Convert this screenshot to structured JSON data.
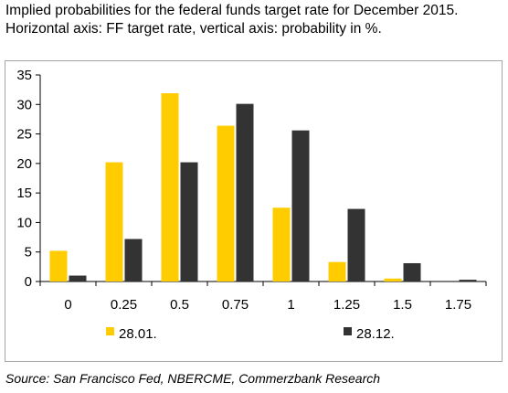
{
  "title": "Implied probabilities for the federal funds target rate for December 2015. Horizontal axis: FF target rate, vertical axis: probability in %.",
  "source": "Source: San Francisco Fed, NBERCME, Commerzbank Research",
  "colors": {
    "series1": "#ffcc00",
    "series2": "#333333",
    "axis": "#000000",
    "frame": "#a6a6a6"
  },
  "chart_data": {
    "type": "bar",
    "title": "",
    "xlabel": "",
    "ylabel": "",
    "categories": [
      "0",
      "0.25",
      "0.5",
      "0.75",
      "1",
      "1.25",
      "1.5",
      "1.75"
    ],
    "series": [
      {
        "name": "28.01.",
        "values": [
          5.2,
          20.2,
          31.9,
          26.4,
          12.5,
          3.3,
          0.5,
          0.0
        ]
      },
      {
        "name": "28.12.",
        "values": [
          1.0,
          7.2,
          20.2,
          30.1,
          25.6,
          12.3,
          3.1,
          0.3
        ]
      }
    ],
    "yticks": [
      "0",
      "5",
      "10",
      "15",
      "20",
      "25",
      "30",
      "35"
    ],
    "ylim": [
      0,
      35
    ],
    "grid": false,
    "legend": "bottom"
  }
}
